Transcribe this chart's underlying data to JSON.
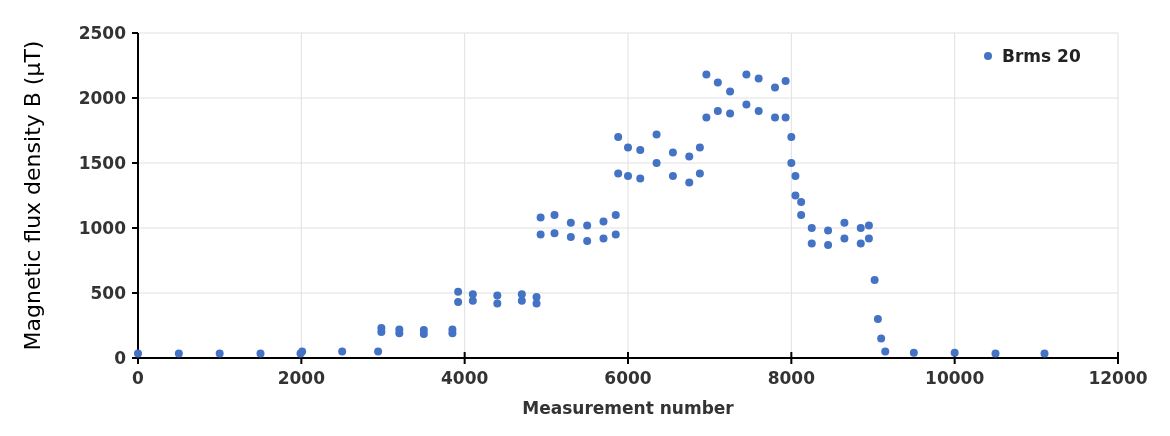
{
  "chart_data": {
    "type": "scatter",
    "xlabel": "Measurement number",
    "ylabel": "Magnetic flux density B (μT)",
    "xlim": [
      0,
      12000
    ],
    "xticks": [
      0,
      2000,
      4000,
      6000,
      8000,
      10000,
      12000
    ],
    "ylim": [
      0,
      2500
    ],
    "yticks": [
      0,
      500,
      1000,
      1500,
      2000,
      2500
    ],
    "grid": true,
    "legend": "top right",
    "marker": "circle",
    "series": [
      {
        "name": "Brms 20",
        "color": "#4472c4",
        "x": [
          0,
          500,
          1000,
          1500,
          1990,
          2010,
          2500,
          2940,
          2980,
          2980,
          3200,
          3200,
          3500,
          3500,
          3850,
          3850,
          3920,
          3920,
          4100,
          4100,
          4400,
          4400,
          4700,
          4700,
          4880,
          4880,
          4930,
          4930,
          5100,
          5100,
          5300,
          5300,
          5500,
          5500,
          5700,
          5700,
          5850,
          5850,
          5880,
          5880,
          6000,
          6000,
          6150,
          6150,
          6350,
          6350,
          6550,
          6550,
          6750,
          6750,
          6880,
          6880,
          6960,
          6960,
          7100,
          7100,
          7250,
          7250,
          7450,
          7450,
          7600,
          7600,
          7800,
          7800,
          7930,
          7930,
          8000,
          8000,
          8050,
          8050,
          8120,
          8120,
          8250,
          8250,
          8450,
          8450,
          8650,
          8650,
          8850,
          8850,
          8950,
          8950,
          9020,
          9060,
          9100,
          9150,
          9500,
          10000,
          10500,
          11100
        ],
        "values": [
          35,
          35,
          35,
          35,
          35,
          50,
          50,
          50,
          200,
          230,
          190,
          220,
          185,
          215,
          190,
          220,
          430,
          510,
          440,
          490,
          420,
          480,
          440,
          490,
          420,
          470,
          950,
          1080,
          960,
          1100,
          930,
          1040,
          900,
          1020,
          920,
          1050,
          950,
          1100,
          1420,
          1700,
          1400,
          1620,
          1380,
          1600,
          1500,
          1720,
          1400,
          1580,
          1350,
          1550,
          1420,
          1620,
          1850,
          2180,
          1900,
          2120,
          1880,
          2050,
          1950,
          2180,
          1900,
          2150,
          1850,
          2080,
          1850,
          2130,
          1500,
          1700,
          1250,
          1400,
          1100,
          1200,
          880,
          1000,
          870,
          980,
          920,
          1040,
          880,
          1000,
          920,
          1020,
          600,
          300,
          150,
          50,
          40,
          40,
          35,
          35
        ]
      }
    ]
  }
}
